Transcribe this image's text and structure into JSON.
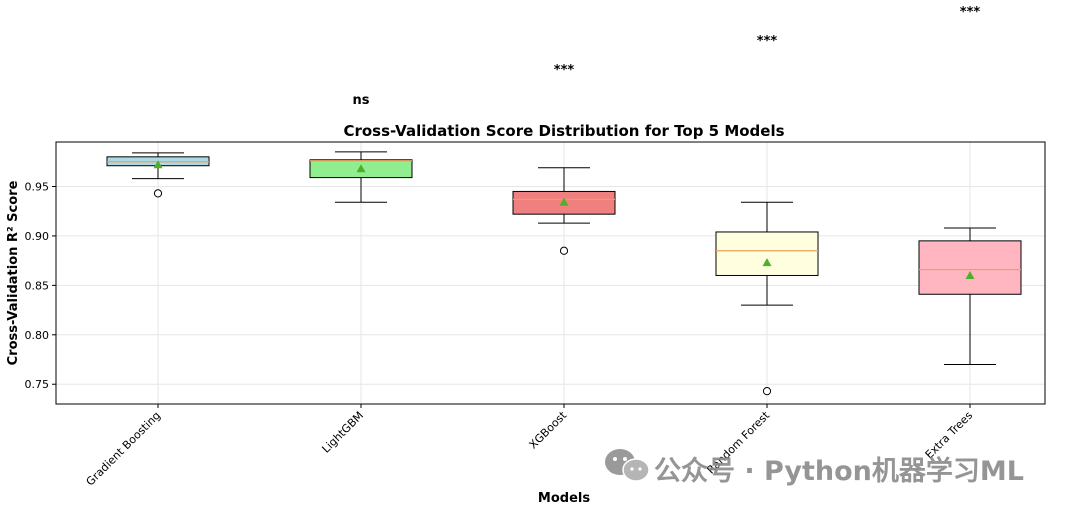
{
  "chart_data": {
    "type": "box",
    "title": "Cross-Validation Score Distribution for Top 5 Models",
    "xlabel": "Models",
    "ylabel": "Cross-Validation R² Score",
    "ylim": [
      0.73,
      0.995
    ],
    "yticks": [
      0.75,
      0.8,
      0.85,
      0.9,
      0.95
    ],
    "grid": true,
    "categories": [
      "Gradient Boosting",
      "LightGBM",
      "XGBoost",
      "Random Forest",
      "Extra Trees"
    ],
    "boxes": [
      {
        "name": "Gradient Boosting",
        "whisker_low": 0.958,
        "q1": 0.971,
        "median": 0.975,
        "q3": 0.98,
        "whisker_high": 0.984,
        "mean": 0.972,
        "outliers": [
          0.943
        ],
        "color": "#add8e6"
      },
      {
        "name": "LightGBM",
        "whisker_low": 0.934,
        "q1": 0.959,
        "median": 0.976,
        "q3": 0.977,
        "whisker_high": 0.985,
        "mean": 0.968,
        "outliers": [],
        "color": "#90ee90"
      },
      {
        "name": "XGBoost",
        "whisker_low": 0.913,
        "q1": 0.922,
        "median": 0.937,
        "q3": 0.945,
        "whisker_high": 0.969,
        "mean": 0.934,
        "outliers": [
          0.885
        ],
        "color": "#f08080"
      },
      {
        "name": "Random Forest",
        "whisker_low": 0.83,
        "q1": 0.86,
        "median": 0.885,
        "q3": 0.904,
        "whisker_high": 0.934,
        "mean": 0.873,
        "outliers": [
          0.743
        ],
        "color": "#ffffe0"
      },
      {
        "name": "Extra Trees",
        "whisker_low": 0.77,
        "q1": 0.841,
        "median": 0.866,
        "q3": 0.895,
        "whisker_high": 0.908,
        "mean": 0.86,
        "outliers": [],
        "color": "#ffb6c1"
      }
    ],
    "significance": [
      {
        "category": "LightGBM",
        "label": "ns"
      },
      {
        "category": "XGBoost",
        "label": "***"
      },
      {
        "category": "Random Forest",
        "label": "***"
      },
      {
        "category": "Extra Trees",
        "label": "***"
      }
    ],
    "colors": {
      "median_line": "#e8a15a",
      "mean_marker": "#4daf2a",
      "grid": "#e6e6e6"
    }
  },
  "watermark": {
    "text": "公众号 · Python机器学习ML",
    "icon": "wechat-icon"
  }
}
